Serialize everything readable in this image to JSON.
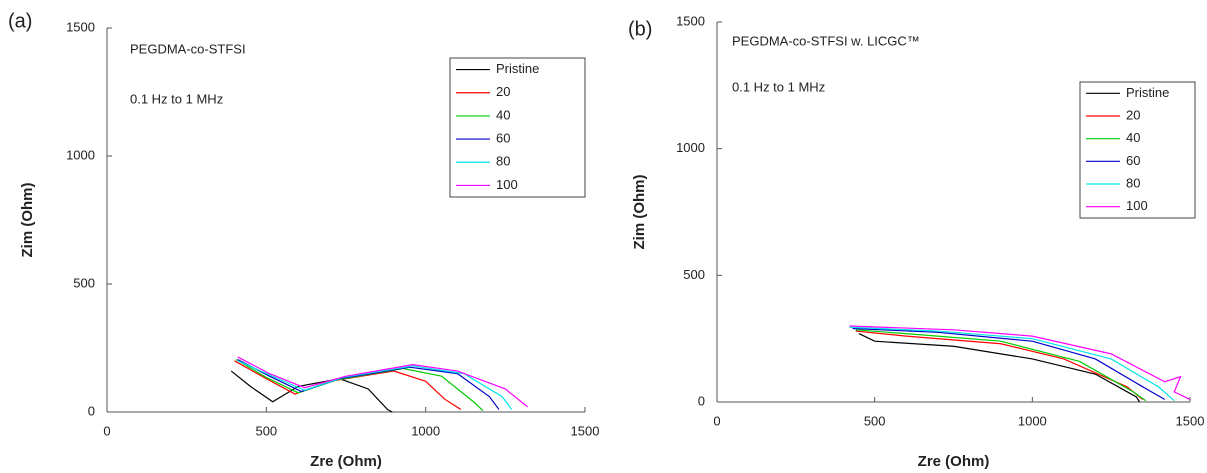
{
  "chart_data": [
    {
      "type": "line",
      "label": "(a)",
      "title": "PEGDMA-co-STFSI",
      "subtitle": "0.1 Hz to 1 MHz",
      "x_label": "Zre (Ohm)",
      "y_label": "Zim (Ohm)",
      "xlim": [
        0,
        1500
      ],
      "ylim": [
        0,
        1500
      ],
      "xticks": [
        0,
        500,
        1000,
        1500
      ],
      "yticks": [
        0,
        500,
        1000,
        1500
      ],
      "series": [
        {
          "name": "Pristine",
          "color": "#000000",
          "x": [
            390,
            450,
            520,
            600,
            730,
            820,
            880,
            895
          ],
          "values": [
            160,
            100,
            40,
            100,
            130,
            90,
            10,
            0
          ]
        },
        {
          "name": "20",
          "color": "#ff0000",
          "x": [
            400,
            500,
            590,
            700,
            900,
            1000,
            1060,
            1110
          ],
          "values": [
            200,
            130,
            70,
            120,
            160,
            120,
            50,
            10
          ]
        },
        {
          "name": "40",
          "color": "#00cc00",
          "x": [
            405,
            500,
            600,
            720,
            930,
            1050,
            1150,
            1180
          ],
          "values": [
            205,
            135,
            75,
            125,
            170,
            140,
            40,
            5
          ]
        },
        {
          "name": "60",
          "color": "#0000cc",
          "x": [
            410,
            510,
            610,
            730,
            950,
            1100,
            1200,
            1230
          ],
          "values": [
            205,
            140,
            80,
            130,
            175,
            150,
            60,
            10
          ]
        },
        {
          "name": "80",
          "color": "#00e5e5",
          "x": [
            410,
            510,
            620,
            740,
            960,
            1120,
            1240,
            1270
          ],
          "values": [
            200,
            145,
            85,
            135,
            180,
            150,
            60,
            10
          ]
        },
        {
          "name": "100",
          "color": "#ff00ff",
          "x": [
            410,
            510,
            620,
            750,
            960,
            1100,
            1250,
            1320
          ],
          "values": [
            215,
            150,
            95,
            140,
            185,
            160,
            90,
            20
          ]
        }
      ]
    },
    {
      "type": "line",
      "label": "(b)",
      "title": "PEGDMA-co-STFSI w. LICGC™",
      "subtitle": "0.1 Hz to 1 MHz",
      "x_label": "Zre (Ohm)",
      "y_label": "Zim (Ohm)",
      "xlim": [
        0,
        1500
      ],
      "ylim": [
        0,
        1500
      ],
      "xticks": [
        0,
        500,
        1000,
        1500
      ],
      "yticks": [
        0,
        500,
        1000,
        1500
      ],
      "series": [
        {
          "name": "Pristine",
          "color": "#000000",
          "x": [
            450,
            500,
            750,
            1000,
            1200,
            1330,
            1340
          ],
          "values": [
            270,
            240,
            220,
            170,
            110,
            20,
            0
          ]
        },
        {
          "name": "20",
          "color": "#ff0000",
          "x": [
            440,
            600,
            900,
            1100,
            1300,
            1350
          ],
          "values": [
            280,
            260,
            230,
            170,
            60,
            10
          ]
        },
        {
          "name": "40",
          "color": "#00cc00",
          "x": [
            440,
            650,
            900,
            1150,
            1320,
            1360
          ],
          "values": [
            285,
            265,
            240,
            160,
            40,
            5
          ]
        },
        {
          "name": "60",
          "color": "#0000cc",
          "x": [
            430,
            700,
            1000,
            1200,
            1350,
            1420
          ],
          "values": [
            290,
            275,
            240,
            170,
            60,
            10
          ]
        },
        {
          "name": "80",
          "color": "#00e5e5",
          "x": [
            420,
            700,
            1000,
            1250,
            1400,
            1450
          ],
          "values": [
            295,
            280,
            250,
            170,
            60,
            5
          ]
        },
        {
          "name": "100",
          "color": "#ff00ff",
          "x": [
            420,
            750,
            1000,
            1250,
            1420,
            1470,
            1450,
            1500
          ],
          "values": [
            300,
            285,
            260,
            190,
            80,
            100,
            40,
            10
          ]
        }
      ]
    }
  ]
}
